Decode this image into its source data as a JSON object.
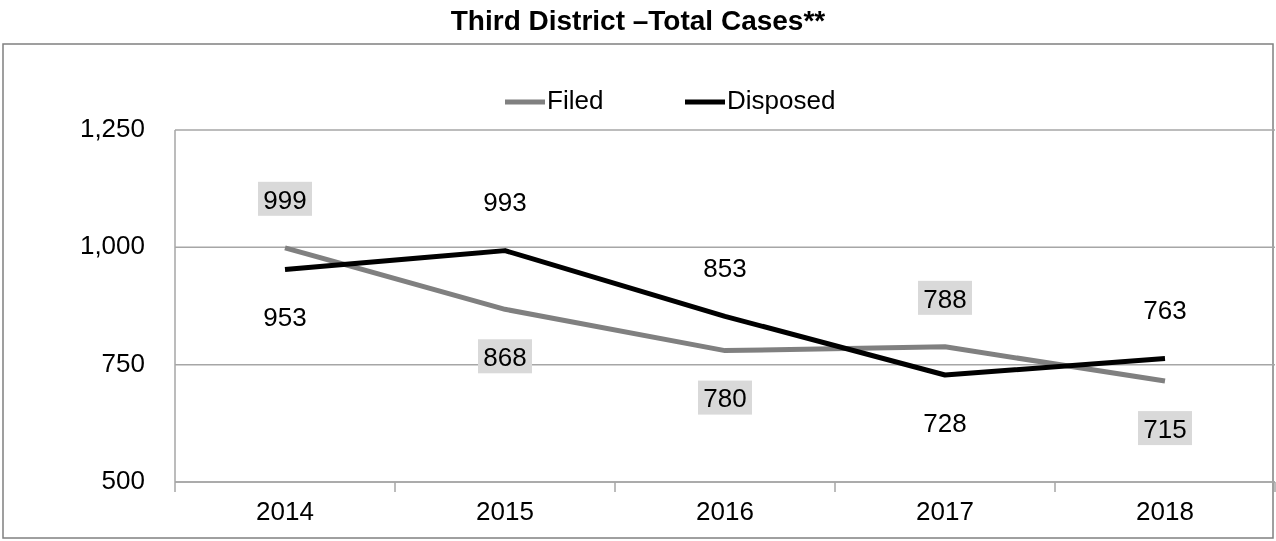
{
  "chart_data": {
    "type": "line",
    "title": "Third District –Total Cases**",
    "categories": [
      "2014",
      "2015",
      "2016",
      "2017",
      "2018"
    ],
    "series": [
      {
        "name": "Filed",
        "color": "#808080",
        "values": [
          999,
          868,
          780,
          788,
          715
        ]
      },
      {
        "name": "Disposed",
        "color": "#000000",
        "values": [
          953,
          993,
          853,
          728,
          763
        ]
      }
    ],
    "ylim": [
      500,
      1250
    ],
    "yticks": [
      {
        "value": 500,
        "label": "500"
      },
      {
        "value": 750,
        "label": "750"
      },
      {
        "value": 1000,
        "label": "1,000"
      },
      {
        "value": 1250,
        "label": "1,250"
      }
    ],
    "grid": "y",
    "legend": "top",
    "data_labels": true,
    "marker": "none",
    "line_style": "solid"
  }
}
